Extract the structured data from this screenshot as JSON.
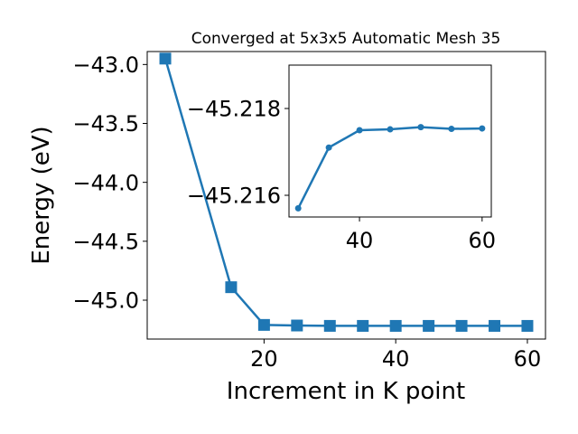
{
  "chart_data": [
    {
      "type": "line",
      "title": "Converged at 5x3x5 Automatic Mesh 35",
      "xlabel": "Increment in K point",
      "ylabel": "Energy (eV)",
      "xlim": [
        2.25,
        62.75
      ],
      "ylim": [
        -45.33,
        -42.89
      ],
      "xticks": [
        20,
        40,
        60
      ],
      "yticks": [
        -43.0,
        -43.5,
        -44.0,
        -44.5,
        -45.0
      ],
      "ytick_labels": [
        "−43.0",
        "−43.5",
        "−44.0",
        "−44.5",
        "−45.0"
      ],
      "grid": false,
      "series": [
        {
          "color": "#1f77b4",
          "marker": "square",
          "x": [
            5,
            15,
            20,
            25,
            30,
            35,
            40,
            45,
            50,
            55,
            60
          ],
          "y": [
            -42.95,
            -44.89,
            -45.21,
            -45.215,
            -45.218,
            -45.2182,
            -45.2182,
            -45.2182,
            -45.2181,
            -45.2182,
            -45.2182
          ]
        }
      ]
    },
    {
      "type": "line",
      "title": "",
      "xlabel": "",
      "ylabel": "",
      "xlim": [
        28.5,
        61.5
      ],
      "ylim": [
        -45.2155,
        -45.219
      ],
      "xticks": [
        40,
        60
      ],
      "yticks": [
        -45.218,
        -45.216
      ],
      "ytick_labels": [
        "−45.218",
        "−45.216"
      ],
      "grid": false,
      "series": [
        {
          "color": "#1f77b4",
          "marker": "circle",
          "x": [
            30,
            35,
            40,
            45,
            50,
            55,
            60
          ],
          "y": [
            -45.2157,
            -45.2171,
            -45.2175,
            -45.21752,
            -45.21757,
            -45.21753,
            -45.21754
          ]
        }
      ]
    }
  ]
}
